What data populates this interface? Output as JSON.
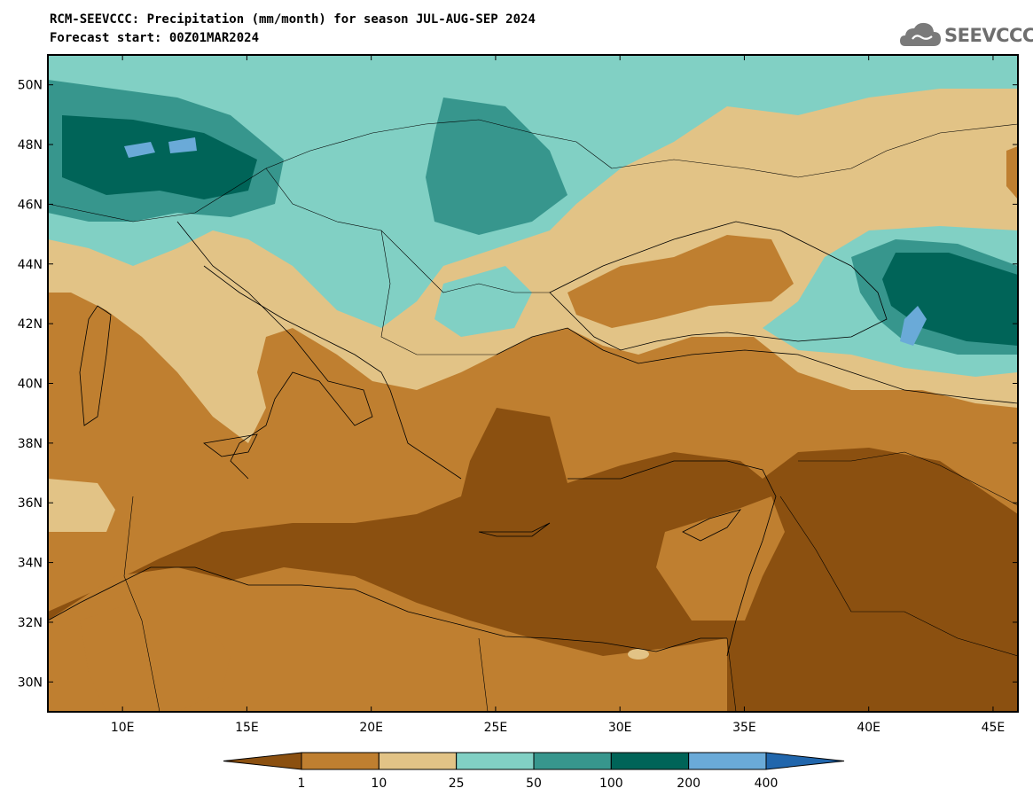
{
  "title": {
    "line1": "RCM-SEEVCCC: Precipitation (mm/month) for season JUL-AUG-SEP 2024",
    "line2": "Forecast start: 00Z01MAR2024"
  },
  "logo": {
    "text": "SEEVCCC",
    "icon": "cloud-icon"
  },
  "axes": {
    "lat_ticks": [
      "30N",
      "32N",
      "34N",
      "36N",
      "38N",
      "40N",
      "42N",
      "44N",
      "46N",
      "48N",
      "50N"
    ],
    "lon_ticks": [
      "10E",
      "15E",
      "20E",
      "25E",
      "30E",
      "35E",
      "40E",
      "45E"
    ],
    "lat_range": [
      29,
      51
    ],
    "lon_range": [
      7,
      46
    ]
  },
  "colorbar": {
    "labels": [
      "1",
      "10",
      "25",
      "50",
      "100",
      "200",
      "400"
    ],
    "colors": [
      "#8b5010",
      "#bf7f30",
      "#e2c386",
      "#81d0c4",
      "#37968d",
      "#006458",
      "#6aaad8",
      "#2166ac"
    ]
  }
}
